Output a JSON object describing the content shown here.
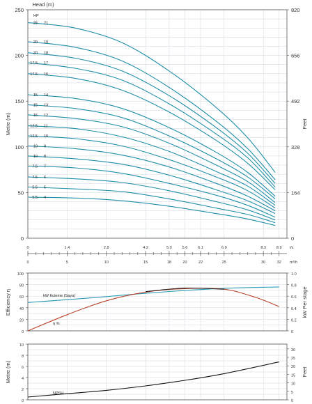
{
  "chart_data": [
    {
      "type": "line",
      "title": "Head (m)",
      "ylabel": "Metre (m)",
      "y2label": "Feet",
      "xlim": [
        0,
        33
      ],
      "ylim": [
        0,
        250
      ],
      "yticks": [
        0,
        50,
        100,
        150,
        200,
        250
      ],
      "y2ticks": [
        "0",
        "164",
        "328",
        "492",
        "656",
        "820"
      ],
      "hp_header": "HP",
      "grid": true,
      "series": [
        {
          "hp": "25",
          "stages": "21",
          "x": [
            0,
            6,
            12,
            18,
            24,
            28,
            31.5
          ],
          "y": [
            236,
            230,
            214,
            183,
            143,
            110,
            72
          ]
        },
        {
          "hp": "20",
          "stages": "19",
          "x": [
            0,
            6,
            12,
            18,
            24,
            28,
            31.5
          ],
          "y": [
            215,
            209,
            194,
            165,
            128,
            98,
            64
          ]
        },
        {
          "hp": "20",
          "stages": "18",
          "x": [
            0,
            6,
            12,
            18,
            24,
            28,
            31.5
          ],
          "y": [
            203,
            197,
            183,
            156,
            121,
            93,
            60
          ]
        },
        {
          "hp": "17.5",
          "stages": "17",
          "x": [
            0,
            6,
            12,
            18,
            24,
            28,
            31.5
          ],
          "y": [
            192,
            186,
            173,
            147,
            114,
            88,
            56
          ]
        },
        {
          "hp": "17.5",
          "stages": "16",
          "x": [
            0,
            6,
            12,
            18,
            24,
            28,
            31.5
          ],
          "y": [
            180,
            175,
            162,
            138,
            107,
            82,
            53
          ]
        },
        {
          "hp": "15",
          "stages": "14",
          "x": [
            0,
            6,
            12,
            18,
            24,
            28,
            31.5
          ],
          "y": [
            157,
            153,
            142,
            121,
            94,
            72,
            46
          ]
        },
        {
          "hp": "15",
          "stages": "13",
          "x": [
            0,
            6,
            12,
            18,
            24,
            28,
            31.5
          ],
          "y": [
            146,
            142,
            132,
            112,
            87,
            67,
            43
          ]
        },
        {
          "hp": "15",
          "stages": "12",
          "x": [
            0,
            6,
            12,
            18,
            24,
            28,
            31.5
          ],
          "y": [
            135,
            131,
            122,
            104,
            80,
            62,
            39
          ]
        },
        {
          "hp": "12.5",
          "stages": "11",
          "x": [
            0,
            6,
            12,
            18,
            24,
            28,
            31.5
          ],
          "y": [
            123,
            120,
            111,
            95,
            73,
            57,
            36
          ]
        },
        {
          "hp": "12.5",
          "stages": "10",
          "x": [
            0,
            6,
            12,
            18,
            24,
            28,
            31.5
          ],
          "y": [
            112,
            109,
            101,
            86,
            67,
            52,
            33
          ]
        },
        {
          "hp": "10",
          "stages": "9",
          "x": [
            0,
            6,
            12,
            18,
            24,
            28,
            31.5
          ],
          "y": [
            101,
            98,
            91,
            78,
            60,
            46,
            30
          ]
        },
        {
          "hp": "10",
          "stages": "8",
          "x": [
            0,
            6,
            12,
            18,
            24,
            28,
            31.5
          ],
          "y": [
            90,
            87,
            81,
            69,
            53,
            41,
            27
          ]
        },
        {
          "hp": "7.5",
          "stages": "7",
          "x": [
            0,
            6,
            12,
            18,
            24,
            28,
            31.5
          ],
          "y": [
            79,
            77,
            71,
            60,
            47,
            36,
            23
          ]
        },
        {
          "hp": "7.5",
          "stages": "6",
          "x": [
            0,
            6,
            12,
            18,
            24,
            28,
            31.5
          ],
          "y": [
            67,
            65,
            61,
            52,
            40,
            31,
            20
          ]
        },
        {
          "hp": "5.5",
          "stages": "5",
          "x": [
            0,
            6,
            12,
            18,
            24,
            28,
            31.5
          ],
          "y": [
            56,
            54,
            51,
            43,
            33,
            26,
            17
          ]
        },
        {
          "hp": "5.5",
          "stages": "4",
          "x": [
            0,
            6,
            12,
            18,
            24,
            28,
            31.5
          ],
          "y": [
            45,
            44,
            41,
            35,
            27,
            21,
            14
          ]
        }
      ]
    },
    {
      "type": "axis",
      "units_top": "l/s",
      "units_bottom": "m³/h",
      "ticks_top": [
        {
          "label": "0",
          "m3h": 0
        },
        {
          "label": "1.4",
          "m3h": 5
        },
        {
          "label": "2.8",
          "m3h": 10
        },
        {
          "label": "4.2",
          "m3h": 15
        },
        {
          "label": "5.0",
          "m3h": 18
        },
        {
          "label": "5.6",
          "m3h": 20
        },
        {
          "label": "6.1",
          "m3h": 22
        },
        {
          "label": "6.9",
          "m3h": 25
        },
        {
          "label": "8.3",
          "m3h": 30
        },
        {
          "label": "8.9",
          "m3h": 32
        }
      ],
      "ticks_bottom": [
        "0",
        "5",
        "10",
        "15",
        "18",
        "20",
        "22",
        "25",
        "30",
        "32"
      ]
    },
    {
      "type": "line",
      "ylabel": "Efficiency η",
      "y2label": "kW Per stage",
      "ylim": [
        0,
        100
      ],
      "yticks": [
        0,
        20,
        40,
        60,
        80,
        100
      ],
      "y2ticks": [
        "0",
        "0.2",
        "0.4",
        "0.6",
        "0.8",
        "1.0"
      ],
      "series": [
        {
          "name": "kW Kuleme (Saya)",
          "axis": "right",
          "x": [
            0,
            8,
            16,
            24,
            32
          ],
          "y": [
            0.49,
            0.57,
            0.66,
            0.73,
            0.76
          ]
        },
        {
          "name": "η %",
          "axis": "left",
          "x": [
            0,
            5,
            10,
            15,
            20,
            25,
            29,
            32
          ],
          "y": [
            0,
            28,
            52,
            67,
            73,
            72,
            58,
            42
          ]
        },
        {
          "axis": "left",
          "x": [
            15,
            20,
            25
          ],
          "y": [
            68,
            74,
            72
          ]
        }
      ]
    },
    {
      "type": "line",
      "ylabel": "Metre (m)",
      "y2label": "Feet",
      "ylim": [
        0,
        10
      ],
      "yticks": [
        0,
        2,
        4,
        6,
        8,
        10
      ],
      "y2ticks": [
        "0",
        "5",
        "10",
        "15",
        "20",
        "25",
        "30"
      ],
      "series": [
        {
          "name": "NPSH",
          "x": [
            0,
            5,
            10,
            15,
            20,
            25,
            32
          ],
          "y": [
            0.5,
            1.1,
            1.7,
            2.5,
            3.5,
            4.7,
            6.8
          ]
        }
      ]
    }
  ]
}
